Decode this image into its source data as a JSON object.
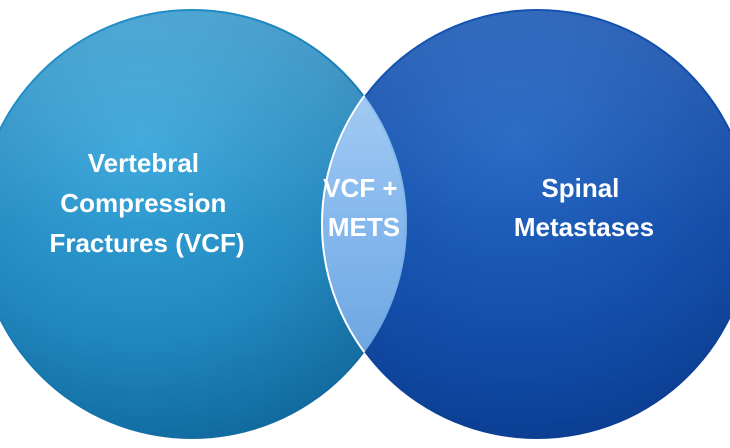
{
  "diagram": {
    "type": "venn",
    "left_set": {
      "lines": [
        "Vertebral",
        "Compression",
        "Fractures (VCF)"
      ],
      "color": "#1a86c0"
    },
    "right_set": {
      "lines": [
        "Spinal",
        "Metastases"
      ],
      "color": "#0d4aa6"
    },
    "intersection": {
      "lines": [
        "VCF +",
        "METS"
      ],
      "color": "#7ab2ec"
    }
  }
}
